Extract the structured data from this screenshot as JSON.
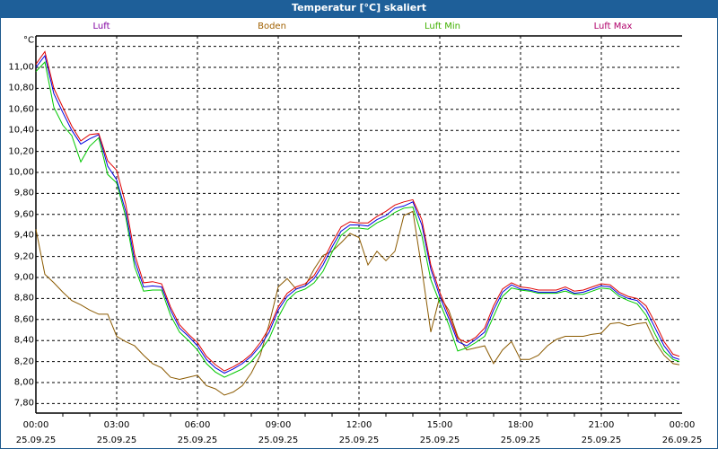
{
  "chart_data": {
    "type": "line",
    "title": "Temperatur [°C] skaliert",
    "ylabel": "°C",
    "ylim": [
      7.71,
      11.29
    ],
    "yticks": [
      "7,80",
      "8,00",
      "8,20",
      "8,40",
      "8,60",
      "8,80",
      "9,00",
      "9,20",
      "9,40",
      "9,60",
      "9,80",
      "10,00",
      "10,20",
      "10,40",
      "10,60",
      "10,80",
      "11,00"
    ],
    "ytick_values": [
      7.8,
      8.0,
      8.2,
      8.4,
      8.6,
      8.8,
      9.0,
      9.2,
      9.4,
      9.6,
      9.8,
      10.0,
      10.2,
      10.4,
      10.6,
      10.8,
      11.0
    ],
    "xlim_hours": [
      0,
      24
    ],
    "xticks": [
      {
        "time": "00:00",
        "date": "25.09.25"
      },
      {
        "time": "03:00",
        "date": "25.09.25"
      },
      {
        "time": "06:00",
        "date": "25.09.25"
      },
      {
        "time": "09:00",
        "date": "25.09.25"
      },
      {
        "time": "12:00",
        "date": "25.09.25"
      },
      {
        "time": "15:00",
        "date": "25.09.25"
      },
      {
        "time": "18:00",
        "date": "25.09.25"
      },
      {
        "time": "21:00",
        "date": "25.09.25"
      },
      {
        "time": "00:00",
        "date": "26.09.25"
      }
    ],
    "x_start_hour": 0,
    "x_step_hours": 0.3333,
    "grid": true,
    "legend_position": "top",
    "series": [
      {
        "name": "Luft",
        "color": "#0000e0",
        "label_color": "#8000a0",
        "values": [
          11.0,
          11.11,
          10.75,
          10.57,
          10.4,
          10.27,
          10.32,
          10.36,
          10.06,
          9.93,
          9.63,
          9.16,
          8.91,
          8.92,
          8.91,
          8.69,
          8.52,
          8.44,
          8.35,
          8.22,
          8.14,
          8.09,
          8.13,
          8.18,
          8.25,
          8.35,
          8.48,
          8.69,
          8.82,
          8.89,
          8.92,
          8.99,
          9.12,
          9.29,
          9.44,
          9.5,
          9.5,
          9.49,
          9.55,
          9.59,
          9.66,
          9.68,
          9.72,
          9.5,
          9.08,
          8.82,
          8.61,
          8.39,
          8.35,
          8.41,
          8.48,
          8.69,
          8.86,
          8.93,
          8.89,
          8.88,
          8.86,
          8.86,
          8.86,
          8.89,
          8.85,
          8.86,
          8.89,
          8.92,
          8.91,
          8.84,
          8.8,
          8.78,
          8.69,
          8.52,
          8.35,
          8.24,
          8.22
        ]
      },
      {
        "name": "Boden",
        "color": "#8b5a00",
        "label_color": "#a06000",
        "values": [
          9.46,
          9.03,
          8.95,
          8.86,
          8.78,
          8.74,
          8.69,
          8.65,
          8.65,
          8.44,
          8.39,
          8.35,
          8.26,
          8.18,
          8.14,
          8.05,
          8.03,
          8.05,
          8.07,
          7.97,
          7.94,
          7.88,
          7.91,
          7.97,
          8.09,
          8.26,
          8.56,
          8.91,
          8.99,
          8.89,
          8.92,
          9.08,
          9.21,
          9.25,
          9.33,
          9.42,
          9.38,
          9.12,
          9.25,
          9.16,
          9.25,
          9.59,
          9.63,
          9.08,
          8.48,
          8.82,
          8.69,
          8.44,
          8.31,
          8.33,
          8.35,
          8.18,
          8.31,
          8.39,
          8.22,
          8.22,
          8.26,
          8.35,
          8.41,
          8.44,
          8.44,
          8.44,
          8.46,
          8.47,
          8.56,
          8.57,
          8.54,
          8.56,
          8.57,
          8.39,
          8.26,
          8.18,
          8.17
        ]
      },
      {
        "name": "Luft Min",
        "color": "#00c800",
        "label_color": "#40b000",
        "values": [
          10.96,
          11.05,
          10.62,
          10.45,
          10.35,
          10.1,
          10.25,
          10.33,
          9.98,
          9.9,
          9.58,
          9.1,
          8.87,
          8.88,
          8.88,
          8.64,
          8.48,
          8.4,
          8.31,
          8.18,
          8.1,
          8.05,
          8.09,
          8.13,
          8.2,
          8.3,
          8.42,
          8.62,
          8.78,
          8.86,
          8.89,
          8.95,
          9.06,
          9.24,
          9.4,
          9.47,
          9.47,
          9.46,
          9.52,
          9.56,
          9.62,
          9.66,
          9.67,
          9.4,
          8.98,
          8.76,
          8.55,
          8.3,
          8.33,
          8.38,
          8.44,
          8.63,
          8.82,
          8.9,
          8.88,
          8.87,
          8.85,
          8.85,
          8.85,
          8.87,
          8.84,
          8.84,
          8.87,
          8.9,
          8.89,
          8.82,
          8.78,
          8.75,
          8.64,
          8.46,
          8.3,
          8.22,
          8.2
        ]
      },
      {
        "name": "Luft Max",
        "color": "#e00000",
        "label_color": "#b0006a",
        "values": [
          11.03,
          11.15,
          10.8,
          10.62,
          10.44,
          10.3,
          10.36,
          10.37,
          10.11,
          10.02,
          9.7,
          9.22,
          8.95,
          8.96,
          8.94,
          8.72,
          8.55,
          8.46,
          8.38,
          8.25,
          8.17,
          8.11,
          8.15,
          8.2,
          8.27,
          8.38,
          8.52,
          8.72,
          8.85,
          8.91,
          8.94,
          9.02,
          9.16,
          9.33,
          9.48,
          9.53,
          9.52,
          9.52,
          9.58,
          9.63,
          9.69,
          9.72,
          9.74,
          9.55,
          9.12,
          8.86,
          8.65,
          8.42,
          8.38,
          8.43,
          8.52,
          8.73,
          8.89,
          8.95,
          8.91,
          8.9,
          8.88,
          8.88,
          8.88,
          8.91,
          8.87,
          8.88,
          8.91,
          8.94,
          8.93,
          8.86,
          8.82,
          8.8,
          8.73,
          8.57,
          8.39,
          8.27,
          8.25
        ]
      }
    ]
  }
}
